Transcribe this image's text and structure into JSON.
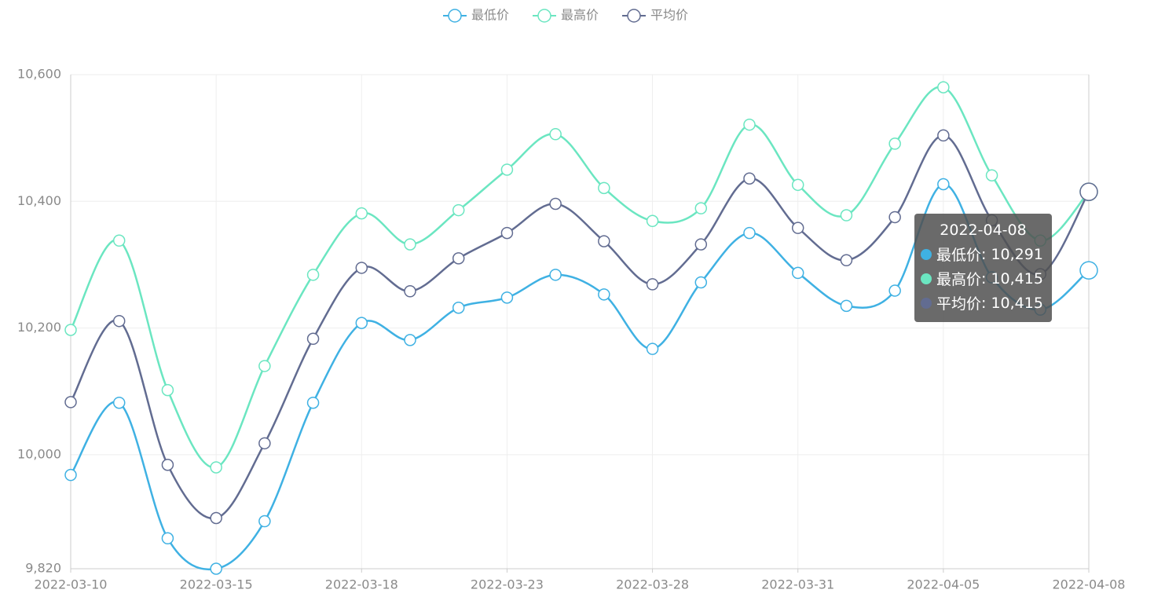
{
  "chart_data": {
    "type": "line",
    "categories": [
      "2022-03-10",
      null,
      null,
      "2022-03-15",
      null,
      null,
      "2022-03-18",
      null,
      null,
      "2022-03-23",
      null,
      null,
      "2022-03-28",
      null,
      null,
      "2022-03-31",
      null,
      null,
      "2022-04-05",
      null,
      null,
      "2022-04-08"
    ],
    "series": [
      {
        "name": "最低价",
        "color": "#3fb1e3",
        "values": [
          9968,
          10082,
          9868,
          9820,
          9895,
          10082,
          10208,
          10181,
          10232,
          10248,
          10284,
          10253,
          10167,
          10272,
          10350,
          10287,
          10235,
          10259,
          10427,
          10280,
          10229,
          10291
        ],
        "value_labels": [
          null,
          null,
          null,
          null,
          null,
          null,
          null,
          null,
          null,
          null,
          null,
          null,
          null,
          null,
          null,
          null,
          null,
          null,
          null,
          null,
          null,
          "10,291"
        ]
      },
      {
        "name": "最高价",
        "color": "#6be6c1",
        "values": [
          10197,
          10338,
          10102,
          9980,
          10140,
          10284,
          10381,
          10332,
          10386,
          10450,
          10506,
          10421,
          10369,
          10389,
          10521,
          10426,
          10378,
          10491,
          10580,
          10441,
          10338,
          10415
        ],
        "value_labels": [
          null,
          null,
          null,
          null,
          null,
          null,
          null,
          null,
          null,
          null,
          null,
          null,
          null,
          null,
          null,
          null,
          null,
          null,
          null,
          null,
          null,
          "10,415"
        ]
      },
      {
        "name": "平均价",
        "color": "#626c91",
        "values": [
          10083,
          10211,
          9984,
          9900,
          10018,
          10183,
          10295,
          10258,
          10310,
          10350,
          10396,
          10337,
          10269,
          10332,
          10436,
          10358,
          10307,
          10375,
          10504,
          10370,
          10285,
          10415
        ],
        "value_labels": [
          null,
          null,
          null,
          null,
          null,
          null,
          null,
          null,
          null,
          null,
          null,
          null,
          null,
          null,
          null,
          null,
          null,
          null,
          null,
          null,
          null,
          "10,415"
        ]
      }
    ],
    "ylim": [
      9820,
      10600
    ],
    "yticks": [
      {
        "value": 9820,
        "label": "9,820"
      },
      {
        "value": 10000,
        "label": "10,000"
      },
      {
        "value": 10200,
        "label": "10,200"
      },
      {
        "value": 10400,
        "label": "10,400"
      },
      {
        "value": 10600,
        "label": "10,600"
      }
    ],
    "grid": true,
    "smooth": true,
    "legend": "top"
  }
}
